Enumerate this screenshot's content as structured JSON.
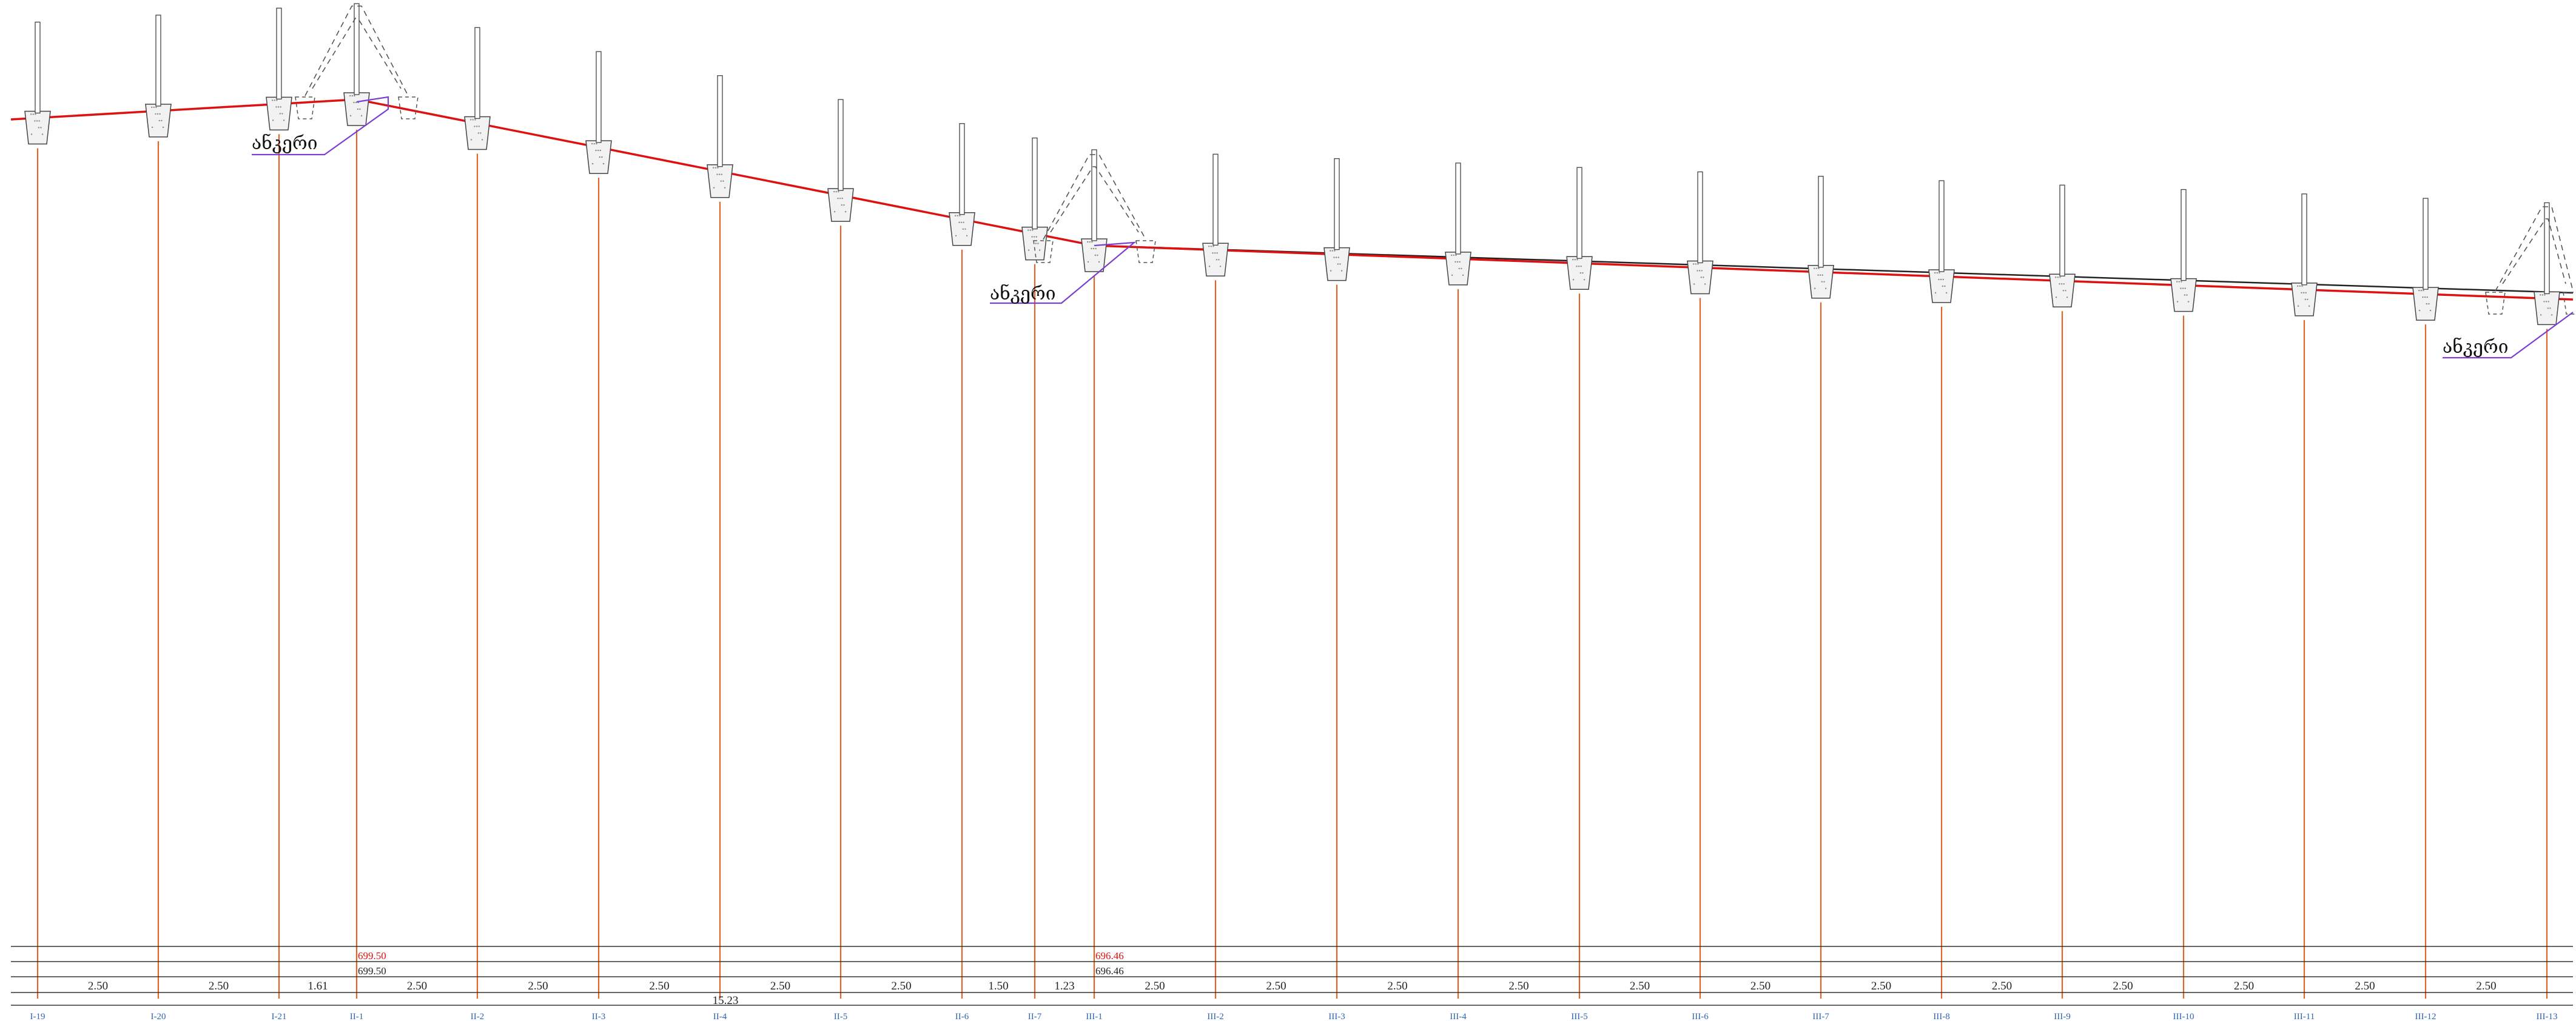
{
  "anchor_label": "ანკერი",
  "elevations": {
    "ii1_design": "699.50",
    "ii1_existing": "699.50",
    "iii1_design": "696.46",
    "iii1_existing": "696.46"
  },
  "total_distance_label": "15.23",
  "stations": [
    "I-19",
    "I-20",
    "I-21",
    "II-1",
    "II-2",
    "II-3",
    "II-4",
    "II-5",
    "II-6",
    "II-7",
    "III-1",
    "III-2",
    "III-3",
    "III-4",
    "III-5",
    "III-6",
    "III-7",
    "III-8",
    "III-9",
    "III-10",
    "III-11",
    "III-12",
    "III-13"
  ],
  "distances": [
    "2.50",
    "2.50",
    "1.61",
    "2.50",
    "2.50",
    "2.50",
    "2.50",
    "2.50",
    "1.50",
    "1.23",
    "2.50",
    "2.50",
    "2.50",
    "2.50",
    "2.50",
    "2.50",
    "2.50",
    "2.50",
    "2.50",
    "2.50",
    "2.50",
    "2.50"
  ],
  "colors": {
    "design_line": "#dd1111",
    "existing_line": "#222222",
    "post_line": "#e0642a",
    "anchor_leader": "#7a3fd0",
    "station_text": "#2a64b8",
    "elevation_red": "#dd1111"
  }
}
